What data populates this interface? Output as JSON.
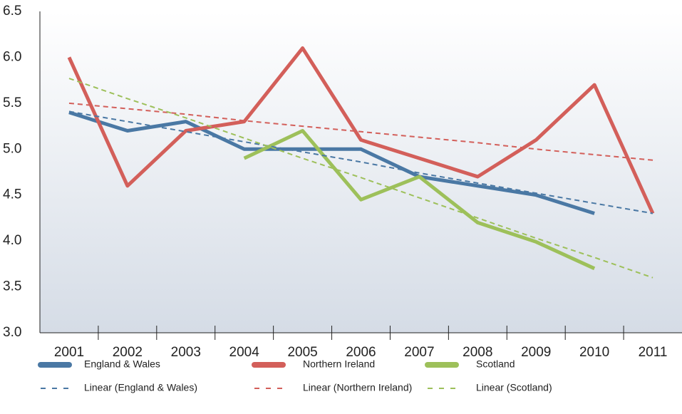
{
  "chart_data": {
    "type": "line",
    "categories": [
      "2001",
      "2002",
      "2003",
      "2004",
      "2005",
      "2006",
      "2007",
      "2008",
      "2009",
      "2010",
      "2011"
    ],
    "series": [
      {
        "name": "England & Wales",
        "color": "#4a78a4",
        "dash": false,
        "values": [
          5.4,
          5.2,
          5.3,
          5.0,
          5.0,
          5.0,
          4.7,
          4.6,
          4.5,
          4.3,
          null
        ]
      },
      {
        "name": "Northern Ireland",
        "color": "#d35f5a",
        "dash": false,
        "values": [
          6.0,
          4.6,
          5.2,
          5.3,
          6.1,
          5.1,
          4.9,
          4.7,
          5.1,
          5.7,
          4.3
        ]
      },
      {
        "name": "Scotland",
        "color": "#9dc05a",
        "dash": false,
        "values": [
          null,
          null,
          null,
          4.9,
          5.2,
          4.45,
          4.7,
          4.2,
          3.99,
          3.7,
          null
        ]
      },
      {
        "name": "Linear (England & Wales)",
        "color": "#4a78a4",
        "dash": true,
        "values": [
          5.41,
          5.3,
          5.19,
          5.08,
          4.97,
          4.86,
          4.74,
          4.63,
          4.52,
          4.41,
          4.3
        ]
      },
      {
        "name": "Linear (Northern Ireland)",
        "color": "#d35f5a",
        "dash": true,
        "values": [
          5.5,
          5.44,
          5.38,
          5.31,
          5.25,
          5.19,
          5.13,
          5.07,
          5.0,
          4.94,
          4.88
        ]
      },
      {
        "name": "Linear (Scotland)",
        "color": "#9dc05a",
        "dash": true,
        "values": [
          5.77,
          5.55,
          5.34,
          5.12,
          4.9,
          4.69,
          4.47,
          4.25,
          4.03,
          3.82,
          3.6
        ]
      }
    ],
    "ylim": [
      3.0,
      6.5
    ],
    "yticks": [
      {
        "value": 3,
        "label": "3.0"
      },
      3.5,
      {
        "value": 4,
        "label": "4.0"
      },
      4.5,
      {
        "value": 5,
        "label": "5.0"
      },
      5.5,
      {
        "value": 6,
        "label": "6.0"
      },
      6.5
    ]
  }
}
